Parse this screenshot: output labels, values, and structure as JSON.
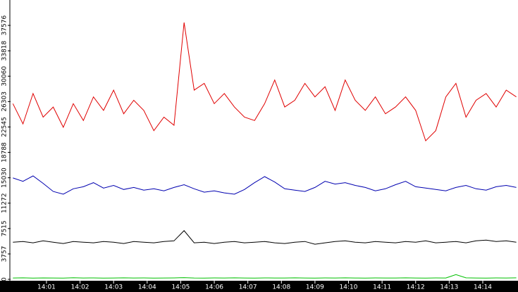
{
  "chart_data": {
    "type": "line",
    "x": [
      0,
      0.3,
      0.6,
      0.9,
      1.2,
      1.5,
      1.8,
      2.1,
      2.4,
      2.7,
      3.0,
      3.3,
      3.6,
      3.9,
      4.2,
      4.5,
      4.8,
      5.1,
      5.4,
      5.7,
      6.0,
      6.3,
      6.6,
      6.9,
      7.2,
      7.5,
      7.8,
      8.1,
      8.4,
      8.7,
      9.0,
      9.3,
      9.6,
      9.9,
      10.2,
      10.5,
      10.8,
      11.1,
      11.4,
      11.7,
      12.0,
      12.3,
      12.6,
      12.9,
      13.2,
      13.5,
      13.8,
      14.1,
      14.4,
      14.7,
      15.0
    ],
    "xlim": [
      -0.07,
      15.05
    ],
    "xticks": [
      {
        "value": 1,
        "label": "14:01"
      },
      {
        "value": 2,
        "label": "14:02"
      },
      {
        "value": 3,
        "label": "14:03"
      },
      {
        "value": 4,
        "label": "14:04"
      },
      {
        "value": 5,
        "label": "14:05"
      },
      {
        "value": 6,
        "label": "14:06"
      },
      {
        "value": 7,
        "label": "14:07"
      },
      {
        "value": 8,
        "label": "14:08"
      },
      {
        "value": 9,
        "label": "14:09"
      },
      {
        "value": 10,
        "label": "14:10"
      },
      {
        "value": 11,
        "label": "14:11"
      },
      {
        "value": 12,
        "label": "14:12"
      },
      {
        "value": 13,
        "label": "14:13"
      },
      {
        "value": 14,
        "label": "14:14"
      }
    ],
    "ylim": [
      0,
      41333
    ],
    "yticks": [
      0,
      3757,
      7515,
      11272,
      15030,
      18788,
      22545,
      26303,
      30060,
      33818,
      37576
    ],
    "series": [
      {
        "color": "#e00000",
        "values": [
          26000,
          23000,
          27500,
          24000,
          25500,
          22500,
          26000,
          23500,
          27000,
          25000,
          28000,
          24500,
          26500,
          25000,
          22000,
          24000,
          22800,
          38000,
          28000,
          29000,
          26000,
          27500,
          25500,
          24000,
          23500,
          26000,
          29500,
          25500,
          26500,
          29000,
          27000,
          28500,
          25000,
          29500,
          26500,
          25000,
          27000,
          24500,
          25500,
          27000,
          25000,
          20500,
          22000,
          27000,
          29000,
          24000,
          26500,
          27500,
          25500,
          28000,
          27000
        ]
      },
      {
        "color": "#0000b0",
        "values": [
          15000,
          14500,
          15300,
          14200,
          13000,
          12600,
          13400,
          13700,
          14300,
          13500,
          13900,
          13300,
          13600,
          13200,
          13400,
          13100,
          13600,
          14000,
          13400,
          12900,
          13100,
          12800,
          12600,
          13300,
          14300,
          15200,
          14400,
          13400,
          13200,
          13000,
          13600,
          14500,
          14100,
          14300,
          13900,
          13600,
          13100,
          13400,
          14000,
          14500,
          13700,
          13500,
          13300,
          13100,
          13600,
          13900,
          13400,
          13200,
          13700,
          13900,
          13600
        ]
      },
      {
        "color": "#000000",
        "values": [
          5500,
          5600,
          5400,
          5700,
          5500,
          5300,
          5600,
          5500,
          5400,
          5600,
          5500,
          5300,
          5600,
          5500,
          5400,
          5600,
          5700,
          7200,
          5400,
          5500,
          5300,
          5500,
          5600,
          5400,
          5500,
          5600,
          5400,
          5300,
          5500,
          5600,
          5200,
          5400,
          5600,
          5700,
          5500,
          5400,
          5600,
          5500,
          5400,
          5600,
          5500,
          5700,
          5400,
          5500,
          5600,
          5400,
          5700,
          5800,
          5600,
          5700,
          5500
        ]
      },
      {
        "color": "#00c000",
        "values": [
          200,
          220,
          180,
          210,
          200,
          190,
          230,
          200,
          210,
          190,
          200,
          220,
          200,
          210,
          190,
          200,
          210,
          250,
          200,
          190,
          210,
          200,
          220,
          200,
          190,
          210,
          200,
          200,
          220,
          200,
          190,
          210,
          200,
          220,
          200,
          190,
          210,
          200,
          200,
          220,
          200,
          190,
          210,
          200,
          700,
          220,
          200,
          190,
          210,
          200,
          220
        ]
      }
    ]
  }
}
